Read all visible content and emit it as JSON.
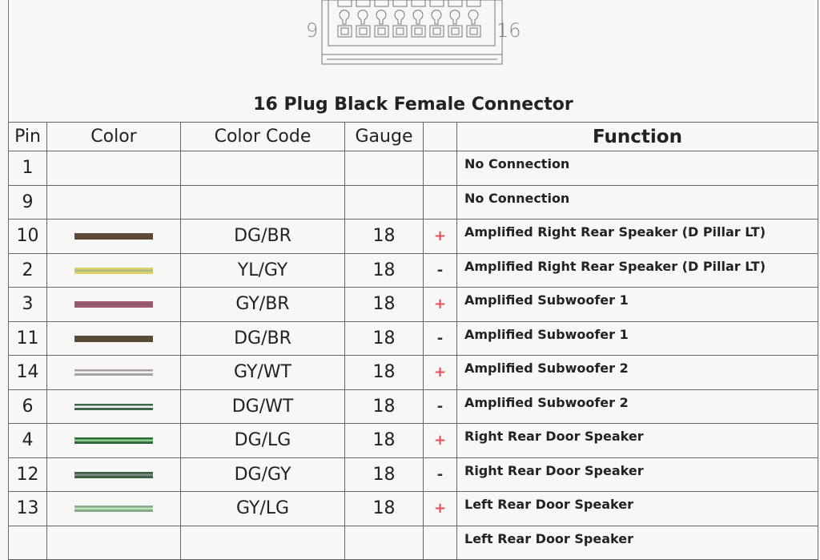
{
  "connector": {
    "left_pin_label": "9",
    "right_pin_label": "16"
  },
  "title": "16 Plug Black Female Connector",
  "headers": [
    "Pin",
    "Color",
    "Color Code",
    "Gauge",
    "",
    "Function"
  ],
  "rows": [
    {
      "pin": "1",
      "code": "",
      "gauge": "",
      "sign": "",
      "function": "No Connection",
      "wire": null
    },
    {
      "pin": "9",
      "code": "",
      "gauge": "",
      "sign": "",
      "function": "No Connection",
      "wire": null
    },
    {
      "pin": "10",
      "code": "DG/BR",
      "gauge": "18",
      "sign": "+",
      "function": "Amplified Right Rear Speaker (D Pillar LT)",
      "wire": [
        "#5e4a38",
        "#5e4a38"
      ]
    },
    {
      "pin": "2",
      "code": "YL/GY",
      "gauge": "18",
      "sign": "-",
      "function": "Amplified Right Rear Speaker (D Pillar LT)",
      "wire": [
        "#d8d46a",
        "#b8b48a"
      ]
    },
    {
      "pin": "3",
      "code": "GY/BR",
      "gauge": "18",
      "sign": "+",
      "function": "Amplified Subwoofer 1",
      "wire": [
        "#a05a70",
        "#8a5a66"
      ]
    },
    {
      "pin": "11",
      "code": "DG/BR",
      "gauge": "18",
      "sign": "-",
      "function": "Amplified Subwoofer 1",
      "wire": [
        "#5a4a38",
        "#5a4a38"
      ]
    },
    {
      "pin": "14",
      "code": "GY/WT",
      "gauge": "18",
      "sign": "+",
      "function": "Amplified Subwoofer 2",
      "wire": [
        "#a8a0a4",
        "#f4f4f4"
      ]
    },
    {
      "pin": "6",
      "code": "DG/WT",
      "gauge": "18",
      "sign": "-",
      "function": "Amplified Subwoofer 2",
      "wire": [
        "#3c6a48",
        "#f4f4f4"
      ]
    },
    {
      "pin": "4",
      "code": "DG/LG",
      "gauge": "18",
      "sign": "+",
      "function": "Right Rear Door Speaker",
      "wire": [
        "#2e6a3a",
        "#8ed08a"
      ]
    },
    {
      "pin": "12",
      "code": "DG/GY",
      "gauge": "18",
      "sign": "-",
      "function": "Right Rear Door Speaker",
      "wire": [
        "#3e6048",
        "#7a8c80"
      ]
    },
    {
      "pin": "13",
      "code": "GY/LG",
      "gauge": "18",
      "sign": "+",
      "function": "Left Rear Door Speaker",
      "wire": [
        "#8aa890",
        "#b6e6b0"
      ]
    },
    {
      "pin": "",
      "code": "",
      "gauge": "",
      "sign": "",
      "function": "Left Rear Door Speaker",
      "wire": null
    }
  ],
  "colors": {
    "plus": "#e0505a",
    "minus": "#333333",
    "grid": "#666666"
  }
}
